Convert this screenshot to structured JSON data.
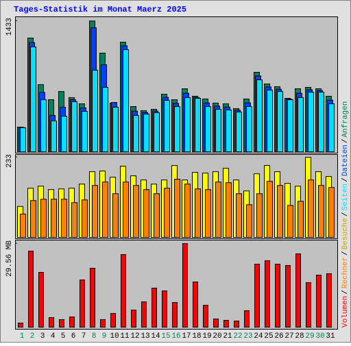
{
  "legend_separator": "/",
  "chart_data": [
    {
      "type": "bar",
      "title": "Tages-Statistik im Monat Maerz 2025",
      "ylim": [
        0,
        1433
      ],
      "yticks": [
        1433
      ],
      "series": [
        {
          "name": "Anfragen",
          "color": "#00805c",
          "values": [
            270,
            1245,
            735,
            570,
            660,
            593,
            525,
            1433,
            1080,
            533,
            1200,
            495,
            450,
            465,
            630,
            570,
            690,
            608,
            578,
            533,
            525,
            473,
            578,
            870,
            743,
            713,
            585,
            690,
            705,
            690,
            608
          ]
        },
        {
          "name": "Dateien",
          "color": "#0040ff",
          "values": [
            266,
            1196,
            650,
            398,
            488,
            570,
            480,
            1358,
            953,
            540,
            1160,
            445,
            430,
            445,
            595,
            530,
            640,
            595,
            535,
            500,
            490,
            455,
            535,
            830,
            710,
            685,
            578,
            640,
            680,
            670,
            565
          ]
        },
        {
          "name": "Seiten",
          "color": "#00e0ff",
          "values": [
            263,
            1148,
            570,
            338,
            390,
            548,
            443,
            893,
            705,
            488,
            1118,
            398,
            413,
            428,
            563,
            495,
            593,
            585,
            495,
            465,
            458,
            435,
            495,
            788,
            675,
            660,
            570,
            593,
            653,
            653,
            525
          ]
        }
      ]
    },
    {
      "type": "bar",
      "ylim": [
        0,
        233
      ],
      "yticks": [
        233
      ],
      "series": [
        {
          "name": "Besuche",
          "color": "#ffff00",
          "values": [
            90,
            143,
            149,
            139,
            141,
            143,
            155,
            191,
            193,
            175,
            207,
            179,
            167,
            155,
            167,
            209,
            167,
            189,
            187,
            191,
            201,
            167,
            135,
            185,
            209,
            191,
            157,
            149,
            233,
            191,
            177
          ]
        },
        {
          "name": "Rechner",
          "color": "#ff8000",
          "values": [
            68,
            107,
            111,
            111,
            111,
            101,
            109,
            151,
            161,
            127,
            161,
            151,
            139,
            127,
            143,
            169,
            155,
            141,
            139,
            161,
            159,
            127,
            95,
            127,
            163,
            151,
            93,
            105,
            167,
            151,
            145
          ]
        }
      ]
    },
    {
      "type": "bar",
      "ylim": [
        0,
        29.56
      ],
      "yticks": [
        {
          "value": 29.56,
          "label": "29.56 MB"
        }
      ],
      "categories": [
        "1",
        "2",
        "3",
        "4",
        "5",
        "6",
        "7",
        "8",
        "9",
        "10",
        "11",
        "12",
        "13",
        "14",
        "15",
        "16",
        "17",
        "18",
        "19",
        "20",
        "21",
        "22",
        "23",
        "24",
        "25",
        "26",
        "27",
        "28",
        "29",
        "30",
        "31"
      ],
      "category_colors": [
        "#00805c",
        "#00805c",
        "#000000",
        "#000000",
        "#000000",
        "#000000",
        "#000000",
        "#00805c",
        "#00805c",
        "#000000",
        "#000000",
        "#000000",
        "#000000",
        "#000000",
        "#00805c",
        "#00805c",
        "#000000",
        "#000000",
        "#000000",
        "#000000",
        "#000000",
        "#00805c",
        "#00805c",
        "#000000",
        "#000000",
        "#000000",
        "#000000",
        "#000000",
        "#00805c",
        "#00805c",
        "#000000"
      ],
      "series": [
        {
          "name": "Volumen",
          "color": "#ff0000",
          "values": [
            1.45,
            26.9,
            19.38,
            3.39,
            2.67,
            3.63,
            16.72,
            20.84,
            2.67,
            4.85,
            25.68,
            6.06,
            8.96,
            13.81,
            12.84,
            8.72,
            29.56,
            15.99,
            7.75,
            2.91,
            2.42,
            2.18,
            5.82,
            22.29,
            23.5,
            22.29,
            21.81,
            25.93,
            15.75,
            18.41,
            18.9
          ]
        }
      ]
    }
  ]
}
